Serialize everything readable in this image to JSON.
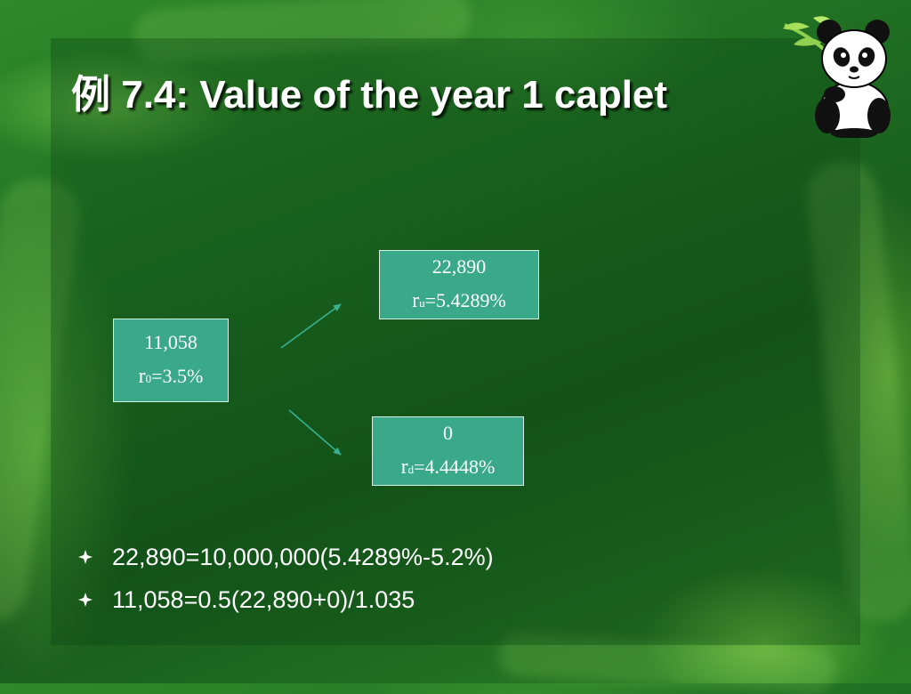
{
  "slide": {
    "title": "例 7.4: Value of the year 1 caplet"
  },
  "tree": {
    "root": {
      "value": "11,058",
      "rate_symbol": "r",
      "rate_sub": "0",
      "rate_value": "=3.5%"
    },
    "up": {
      "value": "22,890",
      "rate_symbol": "r",
      "rate_sub": "u",
      "rate_value": "=5.4289%"
    },
    "down": {
      "value": "0",
      "rate_symbol": "r",
      "rate_sub": "d",
      "rate_value": "=4.4448%"
    }
  },
  "bullets": [
    {
      "text": "22,890=10,000,000(5.4289%-5.2%)"
    },
    {
      "text": "11,058=0.5(22,890+0)/1.035"
    }
  ],
  "colors": {
    "node_fill": "#3aa98a",
    "arrow": "#3ab090",
    "bullet": "#ffffff"
  },
  "icons": {
    "bullet": "diamond-bullet-icon",
    "mascot": "panda-with-bamboo-icon"
  }
}
